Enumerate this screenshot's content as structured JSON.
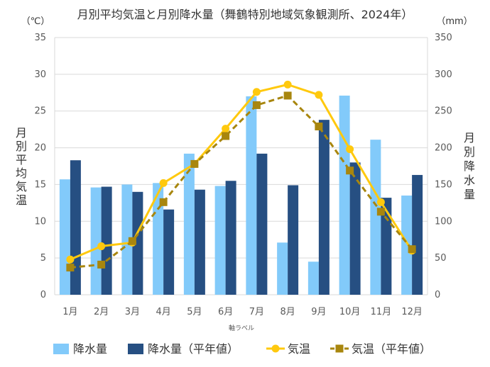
{
  "chart_data": {
    "type": "bar+line",
    "title": "月別平均気温と月別降水量（舞鶴特別地域気象観測所、2024年）",
    "left_unit": "（℃）",
    "right_unit": "（mm）",
    "ylabel_left": "月別平均気温",
    "ylabel_right": "月別降水量",
    "xlabel": "軸ラベル",
    "categories": [
      "1月",
      "2月",
      "3月",
      "4月",
      "5月",
      "6月",
      "7月",
      "8月",
      "9月",
      "10月",
      "11月",
      "12月"
    ],
    "ylim_left": [
      0,
      35
    ],
    "yticks_left": [
      "0",
      "5",
      "10",
      "15",
      "20",
      "25",
      "30",
      "35"
    ],
    "ylim_right": [
      0,
      350
    ],
    "yticks_right": [
      "0",
      "50",
      "100",
      "150",
      "200",
      "250",
      "300",
      "350"
    ],
    "grid": true,
    "legend_position": "bottom",
    "series": [
      {
        "name": "降水量",
        "type": "bar",
        "axis": "right",
        "color": "#82CAFA",
        "values": [
          157,
          146,
          150,
          152,
          192,
          148,
          270,
          71,
          45,
          271,
          211,
          135
        ]
      },
      {
        "name": "降水量（平年値）",
        "type": "bar",
        "axis": "right",
        "color": "#264F82",
        "values": [
          183,
          147,
          140,
          116,
          143,
          155,
          192,
          149,
          238,
          180,
          132,
          163
        ]
      },
      {
        "name": "気温",
        "type": "line",
        "axis": "left",
        "color": "#FFC90E",
        "style": "solid",
        "marker": "circle",
        "values": [
          4.8,
          6.6,
          7.1,
          15.2,
          17.8,
          22.6,
          27.6,
          28.6,
          27.2,
          19.8,
          12.6,
          6.0
        ]
      },
      {
        "name": "気温（平年値）",
        "type": "line",
        "axis": "left",
        "color": "#A8860E",
        "style": "dashed",
        "marker": "square",
        "values": [
          3.7,
          4.1,
          7.3,
          12.6,
          17.8,
          21.6,
          25.8,
          27.1,
          22.9,
          16.9,
          11.3,
          6.2
        ]
      }
    ]
  }
}
